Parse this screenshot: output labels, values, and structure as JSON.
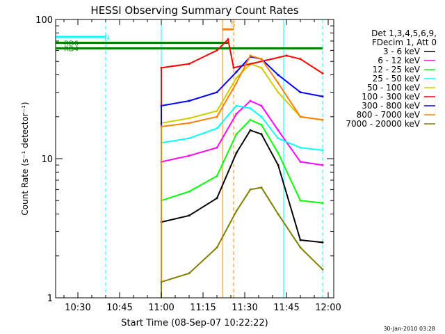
{
  "chart_data": {
    "type": "line",
    "title": "HESSI Observing Summary Count Rates",
    "xlabel": "Start Time (08-Sep-07 10:22:22)",
    "ylabel": "Count Rate (s⁻¹ detector⁻¹)",
    "yscale": "log",
    "xlim": [
      "10:22",
      "12:02"
    ],
    "ylim": [
      1,
      100
    ],
    "x_ticks": [
      "10:30",
      "10:45",
      "11:00",
      "11:15",
      "11:30",
      "11:45",
      "12:00"
    ],
    "y_ticks": [
      "1",
      "10",
      "100"
    ],
    "legend": {
      "position": "right",
      "header": [
        "Det 1,3,4,5,6,9,",
        "FDecim 1, Att 0"
      ]
    },
    "series": [
      {
        "name": "3 - 6 keV",
        "color": "#000000",
        "x": [
          "11:00",
          "11:10",
          "11:20",
          "11:27",
          "11:32",
          "11:36",
          "11:42",
          "11:50",
          "11:58"
        ],
        "values": [
          3.5,
          3.9,
          5.2,
          11,
          16,
          15,
          9,
          2.6,
          2.5
        ]
      },
      {
        "name": "6 - 12 keV",
        "color": "#ff00ff",
        "x": [
          "11:00",
          "11:10",
          "11:20",
          "11:27",
          "11:32",
          "11:36",
          "11:42",
          "11:50",
          "11:58"
        ],
        "values": [
          9.5,
          10.5,
          12,
          21,
          26,
          24,
          16,
          9.5,
          9
        ]
      },
      {
        "name": "12 - 25 keV",
        "color": "#00ff00",
        "x": [
          "11:00",
          "11:10",
          "11:20",
          "11:27",
          "11:32",
          "11:36",
          "11:42",
          "11:50",
          "11:58"
        ],
        "values": [
          5,
          5.8,
          7.5,
          15,
          19,
          17.5,
          11,
          5,
          4.8
        ]
      },
      {
        "name": "25 - 50 keV",
        "color": "#00ffff",
        "x": [
          "11:00",
          "11:10",
          "11:20",
          "11:27",
          "11:32",
          "11:36",
          "11:42",
          "11:50",
          "11:58"
        ],
        "values": [
          13,
          14,
          16.5,
          24,
          23,
          20,
          14,
          12,
          11.5
        ]
      },
      {
        "name": "50 - 100 keV",
        "color": "#cccc00",
        "x": [
          "11:00",
          "11:10",
          "11:20",
          "11:27",
          "11:32",
          "11:36",
          "11:42",
          "11:50",
          "11:58"
        ],
        "values": [
          18,
          19.5,
          22,
          38,
          48,
          45,
          30,
          20,
          19
        ]
      },
      {
        "name": "100 - 300 keV",
        "color": "#ff0000",
        "x": [
          "11:00",
          "11:10",
          "11:20",
          "11:24",
          "11:26",
          "11:45",
          "11:50",
          "11:58"
        ],
        "values": [
          45,
          48,
          60,
          72,
          45,
          55,
          52,
          41
        ]
      },
      {
        "name": "300 - 800 keV",
        "color": "#0000ff",
        "x": [
          "11:00",
          "11:10",
          "11:20",
          "11:27",
          "11:32",
          "11:36",
          "11:42",
          "11:50",
          "11:58"
        ],
        "values": [
          24,
          26,
          30,
          42,
          54,
          52,
          40,
          30,
          28
        ]
      },
      {
        "name": "800 - 7000 keV",
        "color": "#ff8000",
        "x": [
          "11:00",
          "11:10",
          "11:20",
          "11:27",
          "11:32",
          "11:36",
          "11:42",
          "11:50",
          "11:58"
        ],
        "values": [
          17,
          18,
          20,
          35,
          55,
          52,
          35,
          20,
          19
        ]
      },
      {
        "name": "7000 - 20000 keV",
        "color": "#808000",
        "x": [
          "11:00",
          "11:10",
          "11:20",
          "11:27",
          "11:32",
          "11:36",
          "11:42",
          "11:50",
          "11:58"
        ],
        "values": [
          1.3,
          1.5,
          2.3,
          4.2,
          6,
          6.2,
          4,
          2.3,
          1.6
        ]
      }
    ],
    "annotations": [
      {
        "text": "N",
        "color": "#00ffff",
        "x_range": [
          "10:22",
          "10:40"
        ],
        "y": 75
      },
      {
        "text": "RD6",
        "color": "#008000",
        "x_range": [
          "10:22",
          "11:24"
        ],
        "y": 68
      },
      {
        "text": "RD4",
        "color": "#008000",
        "x_range": [
          "10:22",
          "11:58"
        ],
        "y": 62
      },
      {
        "text": "S",
        "color": "#ff8000",
        "x_range": [
          "11:22",
          "11:26"
        ],
        "y": 85
      }
    ],
    "vlines": [
      {
        "x": "10:40",
        "color": "#00ffff",
        "style": "dashed"
      },
      {
        "x": "11:00",
        "color": "#00ffff",
        "style": "solid"
      },
      {
        "x": "11:22",
        "color": "#ff8000",
        "style": "solid"
      },
      {
        "x": "11:26",
        "color": "#ff8000",
        "style": "dashed"
      },
      {
        "x": "11:44",
        "color": "#00ffff",
        "style": "solid"
      },
      {
        "x": "11:58",
        "color": "#00ffff",
        "style": "dashed"
      }
    ],
    "footer": "30-Jan-2010 03:28"
  }
}
